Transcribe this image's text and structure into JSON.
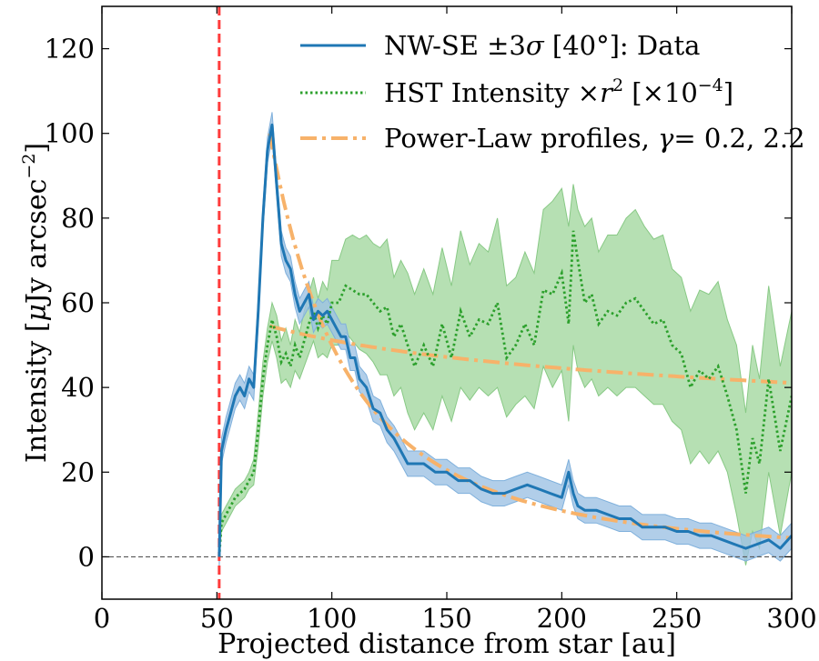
{
  "chart_data": {
    "type": "line",
    "title": "",
    "xlabel": "Projected distance from star [au]",
    "ylabel": "Intensity [μJy arcsec⁻²]",
    "xlim": [
      0,
      300
    ],
    "ylim": [
      -10,
      130
    ],
    "xticks": [
      0,
      50,
      100,
      150,
      200,
      250,
      300
    ],
    "yticks": [
      0,
      20,
      40,
      60,
      80,
      100,
      120
    ],
    "xtick_labels": [
      "0",
      "50",
      "100",
      "150",
      "200",
      "250",
      "300"
    ],
    "ytick_labels": [
      "0",
      "20",
      "40",
      "60",
      "80",
      "100",
      "120"
    ],
    "zero_line": 0,
    "vline": {
      "x": 51,
      "color": "#ff3b3b"
    },
    "legend_position": "top-right",
    "series": [
      {
        "name": "NW-SE ±3σ [40°]: Data",
        "color": "#1f77b4",
        "band_color": "#9ec2e4",
        "band_halfwidth": 3,
        "x": [
          51,
          52,
          54,
          56,
          58,
          60,
          62,
          64,
          66,
          68,
          70,
          72,
          74,
          76,
          78,
          80,
          82,
          84,
          86,
          88,
          90,
          92,
          94,
          96,
          98,
          100,
          102,
          104,
          106,
          108,
          110,
          112,
          115,
          118,
          121,
          124,
          127,
          130,
          133,
          136,
          140,
          145,
          150,
          155,
          160,
          165,
          170,
          175,
          180,
          185,
          190,
          195,
          200,
          203,
          205,
          207,
          210,
          215,
          220,
          225,
          230,
          235,
          240,
          245,
          250,
          255,
          260,
          265,
          270,
          275,
          280,
          285,
          290,
          295,
          300
        ],
        "y": [
          0,
          25,
          30,
          34,
          38,
          40,
          38,
          42,
          40,
          58,
          80,
          96,
          102,
          88,
          74,
          70,
          68,
          62,
          58,
          60,
          62,
          56,
          58,
          57,
          58,
          56,
          54,
          52,
          52,
          47,
          47,
          42,
          40,
          35,
          34,
          30,
          28,
          25,
          22,
          22,
          22,
          20,
          20,
          18,
          18,
          16,
          15,
          15,
          16,
          17,
          16,
          15,
          14,
          20,
          15,
          12,
          11,
          11,
          10,
          9,
          9,
          7,
          7,
          7,
          6,
          6,
          5,
          5,
          4,
          3,
          2,
          3,
          4,
          2,
          5
        ]
      },
      {
        "name": "HST Intensity ×r² [×10⁻⁴]",
        "color": "#2ca02c",
        "band_color": "#a9dba6",
        "x": [
          51,
          52,
          54,
          56,
          58,
          60,
          62,
          64,
          66,
          68,
          70,
          72,
          74,
          76,
          78,
          80,
          82,
          84,
          86,
          88,
          90,
          92,
          94,
          96,
          98,
          100,
          103,
          106,
          109,
          112,
          115,
          118,
          121,
          124,
          127,
          130,
          133,
          136,
          140,
          144,
          148,
          152,
          156,
          160,
          164,
          168,
          172,
          176,
          180,
          184,
          188,
          192,
          196,
          200,
          203,
          205,
          207,
          210,
          213,
          216,
          220,
          224,
          228,
          232,
          236,
          240,
          244,
          248,
          252,
          256,
          260,
          264,
          268,
          272,
          276,
          280,
          283,
          286,
          290,
          295,
          300
        ],
        "y": [
          0,
          8,
          10,
          12,
          14,
          15,
          16,
          18,
          20,
          30,
          42,
          50,
          56,
          52,
          46,
          48,
          45,
          50,
          47,
          51,
          55,
          58,
          54,
          57,
          55,
          60,
          60,
          64,
          63,
          62,
          62,
          60,
          58,
          59,
          52,
          55,
          50,
          45,
          50,
          45,
          55,
          47,
          58,
          52,
          56,
          55,
          60,
          47,
          50,
          55,
          50,
          63,
          62,
          67,
          55,
          77,
          70,
          60,
          62,
          55,
          58,
          57,
          60,
          61,
          58,
          55,
          56,
          50,
          48,
          40,
          44,
          42,
          45,
          38,
          30,
          15,
          28,
          22,
          42,
          25,
          38
        ],
        "lower": [
          0,
          6,
          8,
          10,
          12,
          13,
          14,
          16,
          17,
          26,
          38,
          46,
          51,
          47,
          41,
          42,
          40,
          44,
          42,
          45,
          48,
          51,
          47,
          48,
          47,
          50,
          50,
          53,
          51,
          49,
          48,
          46,
          43,
          43,
          38,
          40,
          34,
          30,
          34,
          30,
          38,
          32,
          40,
          37,
          40,
          38,
          40,
          33,
          36,
          38,
          35,
          45,
          40,
          44,
          32,
          50,
          44,
          40,
          42,
          38,
          40,
          38,
          40,
          40,
          38,
          36,
          36,
          32,
          30,
          22,
          25,
          22,
          25,
          20,
          10,
          -2,
          6,
          2,
          20,
          5,
          20
        ],
        "upper": [
          0,
          10,
          12,
          14,
          16,
          17,
          18,
          20,
          23,
          34,
          46,
          54,
          60,
          57,
          51,
          54,
          50,
          56,
          53,
          58,
          62,
          66,
          61,
          65,
          63,
          70,
          70,
          75,
          76,
          75,
          76,
          74,
          73,
          75,
          66,
          70,
          67,
          62,
          68,
          62,
          73,
          64,
          77,
          69,
          74,
          72,
          80,
          64,
          66,
          72,
          67,
          82,
          84,
          87,
          78,
          88,
          82,
          78,
          80,
          72,
          76,
          76,
          80,
          82,
          78,
          75,
          76,
          68,
          66,
          58,
          63,
          62,
          65,
          56,
          50,
          34,
          50,
          42,
          64,
          45,
          58
        ]
      },
      {
        "name": "Power-Law profiles, γ= 0.2, 2.2",
        "color": "#f7b26a",
        "components": [
          {
            "gamma": 2.2,
            "x0": 73,
            "y0": 100,
            "x_start": 73,
            "x_end": 300
          },
          {
            "gamma": 0.2,
            "x0": 73,
            "y0": 54.5,
            "x_start": 73,
            "x_end": 300
          }
        ]
      }
    ]
  },
  "legend": {
    "entries": [
      {
        "pre": "NW-SE ±3",
        "italic": "σ",
        "post": " [40°]: Data"
      },
      {
        "pre": "HST Intensity ×",
        "italic": "r",
        "sup1": "2",
        "mid": " [×10",
        "sup2": "−4",
        "post": "]"
      },
      {
        "pre": "Power-Law profiles, ",
        "italic": "γ",
        "post": "= 0.2, 2.2"
      }
    ]
  },
  "ylabel_parts": {
    "pre": "Intensity [",
    "italic": "μ",
    "mid": "Jy arcsec",
    "sup": "−2",
    "post": "]"
  }
}
